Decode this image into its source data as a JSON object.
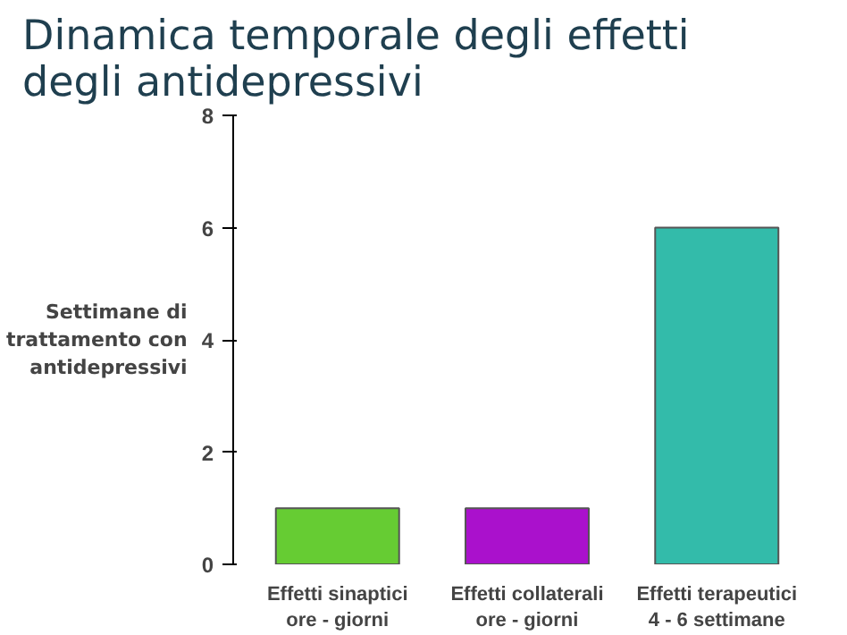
{
  "chart_data": {
    "type": "bar",
    "title": "Dinamica temporale degli effetti\n degli antidepressivi",
    "ylabel": "Settimane di\ntrattamento con\nantidepressivi",
    "categories": [
      "Effetti sinaptici\nore - giorni",
      "Effetti collaterali\nore - giorni",
      "Effetti terapeutici\n4 - 6 settimane"
    ],
    "values": [
      1,
      1,
      6
    ],
    "colors": [
      "#66cc33",
      "#aa11cc",
      "#33bbaa"
    ],
    "ylim": [
      0,
      8
    ],
    "yticks": [
      0,
      2,
      4,
      6,
      8
    ],
    "grid": false
  }
}
